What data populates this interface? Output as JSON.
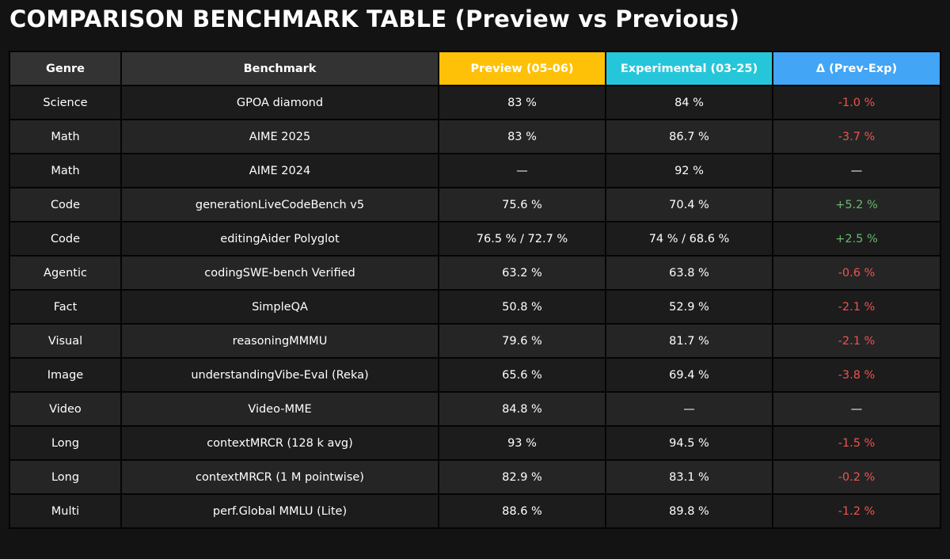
{
  "title": "COMPARISON BENCHMARK TABLE (Preview vs Previous)",
  "colors": {
    "background": "#131313",
    "header_neutral": "#333333",
    "preview_header": "#ffc107",
    "experimental_header": "#26c6da",
    "delta_header": "#42a5f5",
    "negative_delta": "#ef5350",
    "positive_delta": "#66bb6a"
  },
  "chart_data": {
    "type": "table",
    "title": "COMPARISON BENCHMARK TABLE (Preview vs Previous)",
    "columns": [
      "Genre",
      "Benchmark",
      "Preview (05-06)",
      "Experimental (03-25)",
      "Δ (Prev-Exp)"
    ],
    "rows": [
      {
        "genre": "Science",
        "benchmark": "GPOA diamond",
        "preview": "83 %",
        "experimental": "84 %",
        "delta": "-1.0 %",
        "sign": "neg"
      },
      {
        "genre": "Math",
        "benchmark": "AIME 2025",
        "preview": "83 %",
        "experimental": "86.7 %",
        "delta": "-3.7 %",
        "sign": "neg"
      },
      {
        "genre": "Math",
        "benchmark": "AIME 2024",
        "preview": "—",
        "experimental": "92 %",
        "delta": "—",
        "sign": "none"
      },
      {
        "genre": "Code",
        "benchmark": "generationLiveCodeBench v5",
        "preview": "75.6 %",
        "experimental": "70.4 %",
        "delta": "+5.2 %",
        "sign": "pos"
      },
      {
        "genre": "Code",
        "benchmark": "editingAider Polyglot",
        "preview": "76.5 % / 72.7 %",
        "experimental": "74 % / 68.6 %",
        "delta": "+2.5 %",
        "sign": "pos"
      },
      {
        "genre": "Agentic",
        "benchmark": "codingSWE-bench Verified",
        "preview": "63.2 %",
        "experimental": "63.8 %",
        "delta": "-0.6 %",
        "sign": "neg"
      },
      {
        "genre": "Fact",
        "benchmark": "SimpleQA",
        "preview": "50.8 %",
        "experimental": "52.9 %",
        "delta": "-2.1 %",
        "sign": "neg"
      },
      {
        "genre": "Visual",
        "benchmark": "reasoningMMMU",
        "preview": "79.6 %",
        "experimental": "81.7 %",
        "delta": "-2.1 %",
        "sign": "neg"
      },
      {
        "genre": "Image",
        "benchmark": "understandingVibe-Eval (Reka)",
        "preview": "65.6 %",
        "experimental": "69.4 %",
        "delta": "-3.8 %",
        "sign": "neg"
      },
      {
        "genre": "Video",
        "benchmark": "Video-MME",
        "preview": "84.8 %",
        "experimental": "—",
        "delta": "—",
        "sign": "none"
      },
      {
        "genre": "Long",
        "benchmark": "contextMRCR (128 k avg)",
        "preview": "93 %",
        "experimental": "94.5 %",
        "delta": "-1.5 %",
        "sign": "neg"
      },
      {
        "genre": "Long",
        "benchmark": "contextMRCR (1 M pointwise)",
        "preview": "82.9 %",
        "experimental": "83.1 %",
        "delta": "-0.2 %",
        "sign": "neg"
      },
      {
        "genre": "Multi",
        "benchmark": "perf.Global MMLU (Lite)",
        "preview": "88.6 %",
        "experimental": "89.8 %",
        "delta": "-1.2 %",
        "sign": "neg"
      }
    ]
  }
}
